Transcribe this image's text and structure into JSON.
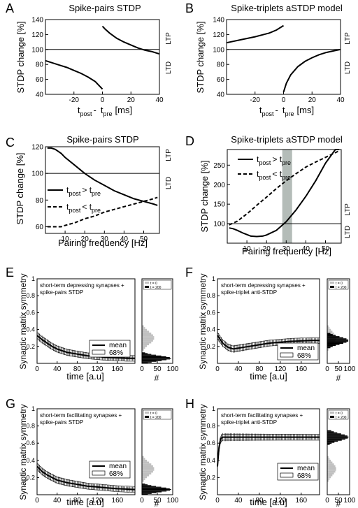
{
  "chart_data": [
    {
      "id": "A",
      "panel_letter": "A",
      "type": "line",
      "title": "Spike-pairs STDP",
      "xlabel_parts": [
        "t",
        "post",
        "-",
        "t",
        "pre",
        "[ms]"
      ],
      "ylabel": "STDP change [%]",
      "side_labels": [
        "LTP",
        "LTD"
      ],
      "xlim": [
        -40,
        40
      ],
      "ylim": [
        40,
        140
      ],
      "xticks": [
        -20,
        0,
        20,
        40
      ],
      "yticks": [
        40,
        60,
        80,
        100,
        120,
        140
      ],
      "reference_y": 100,
      "series": [
        {
          "style": "solid",
          "segments": [
            {
              "x": [
                -40,
                -35,
                -30,
                -25,
                -20,
                -15,
                -10,
                -5,
                -2,
                0
              ],
              "y": [
                85,
                82,
                79,
                76,
                72,
                68,
                63,
                57,
                51,
                47
              ]
            },
            {
              "x": [
                0,
                2,
                5,
                10,
                15,
                20,
                25,
                30,
                35,
                40
              ],
              "y": [
                131,
                127,
                122,
                115,
                110,
                106,
                102,
                99,
                97,
                94
              ]
            }
          ]
        }
      ]
    },
    {
      "id": "B",
      "panel_letter": "B",
      "type": "line",
      "title": "Spike-triplets aSTDP model",
      "xlabel_parts": [
        "t",
        "post",
        "-",
        "t",
        "pre",
        "[ms]"
      ],
      "ylabel": "STDP change [%]",
      "side_labels": [
        "LTP",
        "LTD"
      ],
      "xlim": [
        -40,
        40
      ],
      "ylim": [
        40,
        140
      ],
      "xticks": [
        -20,
        0,
        20,
        40
      ],
      "yticks": [
        40,
        60,
        80,
        100,
        120,
        140
      ],
      "reference_y": 100,
      "series": [
        {
          "style": "solid",
          "segments": [
            {
              "x": [
                -40,
                -30,
                -20,
                -10,
                -5,
                0
              ],
              "y": [
                109,
                113,
                117,
                122,
                126,
                132
              ]
            },
            {
              "x": [
                0,
                2,
                5,
                10,
                15,
                20,
                25,
                30,
                35,
                40
              ],
              "y": [
                43,
                55,
                66,
                77,
                84,
                89,
                93,
                96,
                98,
                100
              ]
            }
          ]
        }
      ]
    },
    {
      "id": "C",
      "panel_letter": "C",
      "type": "line",
      "title": "Spike-pairs STDP",
      "xlabel": "Pairing frequency [Hz]",
      "ylabel": "STDP change [%]",
      "side_labels": [
        "LTP",
        "LTD"
      ],
      "xlim": [
        0,
        58
      ],
      "ylim": [
        55,
        120
      ],
      "xticks": [
        10,
        20,
        30,
        40,
        50
      ],
      "yticks": [
        60,
        80,
        100,
        120
      ],
      "reference_y": 100,
      "legend": [
        {
          "style": "solid",
          "parts": [
            "t",
            "post",
            "> t",
            "pre"
          ]
        },
        {
          "style": "dashed",
          "parts": [
            "t",
            "post",
            "< t",
            "pre"
          ]
        }
      ],
      "series": [
        {
          "style": "solid",
          "segments": [
            {
              "x": [
                1,
                3,
                5,
                8,
                10,
                15,
                20,
                25,
                30,
                35,
                40,
                45,
                50,
                55,
                57
              ],
              "y": [
                119,
                119,
                118,
                115,
                112,
                106,
                100,
                95,
                91,
                87,
                84,
                81,
                79,
                77,
                76
              ]
            }
          ]
        },
        {
          "style": "dashed",
          "segments": [
            {
              "x": [
                1,
                5,
                8,
                10,
                15,
                20,
                25,
                30,
                35,
                40,
                45,
                50,
                55,
                57
              ],
              "y": [
                60,
                60,
                60,
                61,
                63,
                66,
                68,
                71,
                73,
                75,
                77,
                79,
                81,
                82
              ]
            }
          ]
        }
      ]
    },
    {
      "id": "D",
      "panel_letter": "D",
      "type": "line",
      "title": "Spike-triplets aSTDP model",
      "xlabel": "Pairing frequency [Hz]",
      "ylabel": "STDP change [%]",
      "side_labels": [
        "LTP",
        "LTD"
      ],
      "xlim": [
        0,
        58
      ],
      "ylim": [
        50,
        290
      ],
      "xticks": [
        10,
        20,
        30,
        40,
        50
      ],
      "yticks": [
        100,
        150,
        200,
        250
      ],
      "reference_y": 100,
      "shaded_x": [
        28,
        33
      ],
      "legend": [
        {
          "style": "solid",
          "parts": [
            "t",
            "post",
            "> t",
            "pre"
          ]
        },
        {
          "style": "dashed",
          "parts": [
            "t",
            "post",
            "< t",
            "pre"
          ]
        }
      ],
      "series": [
        {
          "style": "solid",
          "segments": [
            {
              "x": [
                1,
                3,
                5,
                8,
                10,
                12,
                15,
                18,
                20,
                25,
                30,
                35,
                40,
                45,
                50,
                55,
                57
              ],
              "y": [
                89,
                87,
                83,
                76,
                72,
                68,
                67,
                68,
                71,
                83,
                105,
                135,
                170,
                210,
                255,
                290,
                290
              ]
            }
          ]
        },
        {
          "style": "dashed",
          "segments": [
            {
              "x": [
                1,
                5,
                10,
                15,
                20,
                25,
                30,
                35,
                40,
                45,
                50,
                55,
                57
              ],
              "y": [
                97,
                106,
                125,
                147,
                168,
                190,
                210,
                228,
                245,
                258,
                270,
                282,
                287
              ]
            }
          ]
        }
      ]
    },
    {
      "id": "E",
      "panel_letter": "E",
      "type": "line",
      "annotation": [
        "short-term depressing synapses +",
        "spike-pairs STDP"
      ],
      "xlabel": "time [a.u]",
      "ylabel": "Synaptic matrix symmetry",
      "xlim": [
        0,
        195
      ],
      "ylim": [
        0,
        1
      ],
      "xticks": [
        0,
        40,
        80,
        120,
        160
      ],
      "yticks": [
        0.2,
        0.4,
        0.6,
        0.8,
        1
      ],
      "legend": [
        "mean",
        "68%"
      ],
      "series": [
        {
          "name": "mean",
          "x": [
            0,
            10,
            20,
            30,
            40,
            50,
            60,
            80,
            100,
            120,
            140,
            160,
            180,
            195
          ],
          "y": [
            0.33,
            0.28,
            0.24,
            0.2,
            0.17,
            0.15,
            0.13,
            0.11,
            0.09,
            0.08,
            0.07,
            0.065,
            0.06,
            0.06
          ]
        }
      ],
      "histogram": {
        "xticks": [
          0,
          50,
          100
        ],
        "xlabel": "#",
        "legend": [
          "t = 0",
          "t = 200"
        ],
        "t0_range": [
          0.15,
          0.45
        ],
        "t0_peak": 0.3,
        "t0_max": 40,
        "t200_range": [
          0,
          0.13
        ],
        "t200_peak": 0.06,
        "t200_max": 95
      }
    },
    {
      "id": "F",
      "panel_letter": "F",
      "type": "line",
      "annotation": [
        "short-term depressing synapses +",
        "spike-triplet anti-STDP"
      ],
      "xlabel": "time [a.u]",
      "ylabel": "Synaptic matrix symmetry",
      "xlim": [
        0,
        195
      ],
      "ylim": [
        0,
        1
      ],
      "xticks": [
        0,
        40,
        80,
        120,
        160
      ],
      "yticks": [
        0.2,
        0.4,
        0.6,
        0.8,
        1
      ],
      "legend": [
        "mean",
        "68%"
      ],
      "series": [
        {
          "name": "mean",
          "x": [
            0,
            10,
            20,
            30,
            40,
            60,
            80,
            100,
            120,
            140,
            160,
            180,
            195
          ],
          "y": [
            0.33,
            0.24,
            0.19,
            0.17,
            0.18,
            0.2,
            0.22,
            0.24,
            0.25,
            0.26,
            0.265,
            0.27,
            0.27
          ]
        }
      ],
      "histogram": {
        "xticks": [
          0,
          50,
          100
        ],
        "xlabel": "#",
        "legend": [
          "t = 0",
          "t = 200"
        ],
        "t0_range": [
          0.15,
          0.45
        ],
        "t0_peak": 0.3,
        "t0_max": 40,
        "t200_range": [
          0.18,
          0.36
        ],
        "t200_peak": 0.27,
        "t200_max": 95
      }
    },
    {
      "id": "G",
      "panel_letter": "G",
      "type": "line",
      "annotation": [
        "short-term facilitating synapses +",
        "spike-pairs STDP"
      ],
      "xlabel": "time [a.u]",
      "ylabel": "Synaptic matrix symmetry",
      "xlim": [
        0,
        195
      ],
      "ylim": [
        0,
        1
      ],
      "xticks": [
        0,
        40,
        80,
        120,
        160
      ],
      "yticks": [
        0.2,
        0.4,
        0.6,
        0.8,
        1
      ],
      "legend": [
        "mean",
        "68%"
      ],
      "series": [
        {
          "name": "mean",
          "x": [
            0,
            10,
            20,
            30,
            40,
            60,
            80,
            100,
            120,
            140,
            160,
            180,
            195
          ],
          "y": [
            0.33,
            0.27,
            0.23,
            0.2,
            0.17,
            0.14,
            0.12,
            0.1,
            0.09,
            0.08,
            0.07,
            0.065,
            0.06
          ]
        }
      ],
      "histogram": {
        "xticks": [
          0,
          50,
          100
        ],
        "xlabel": "#",
        "legend": [
          "t = 0",
          "t = 200"
        ],
        "t0_range": [
          0.15,
          0.45
        ],
        "t0_peak": 0.3,
        "t0_max": 40,
        "t200_range": [
          0,
          0.13
        ],
        "t200_peak": 0.06,
        "t200_max": 95
      }
    },
    {
      "id": "H",
      "panel_letter": "H",
      "type": "line",
      "annotation": [
        "short-term facilitating synapses +",
        "spike-triplet anti-STDP"
      ],
      "xlabel": "time [a.u]",
      "ylabel": "Synaptic matrix symmetry",
      "xlim": [
        0,
        195
      ],
      "ylim": [
        0,
        1
      ],
      "xticks": [
        0,
        40,
        80,
        120,
        160
      ],
      "yticks": [
        0.2,
        0.4,
        0.6,
        0.8,
        1
      ],
      "legend": [
        "mean",
        "68%"
      ],
      "series": [
        {
          "name": "mean",
          "x": [
            0,
            3,
            6,
            10,
            20,
            40,
            80,
            120,
            160,
            195
          ],
          "y": [
            0.33,
            0.55,
            0.65,
            0.67,
            0.67,
            0.67,
            0.67,
            0.67,
            0.67,
            0.67
          ]
        }
      ],
      "histogram": {
        "xticks": [
          0,
          50,
          100
        ],
        "xlabel": "#",
        "legend": [
          "t = 0",
          "t = 200"
        ],
        "t0_range": [
          0.15,
          0.45
        ],
        "t0_peak": 0.3,
        "t0_max": 40,
        "t200_range": [
          0.58,
          0.75
        ],
        "t200_peak": 0.67,
        "t200_max": 95
      }
    }
  ],
  "colors": {
    "line": "#000000",
    "shade": "#b4bcb8",
    "hist_t0": "#c0c0c0",
    "hist_t200": "#000000"
  }
}
